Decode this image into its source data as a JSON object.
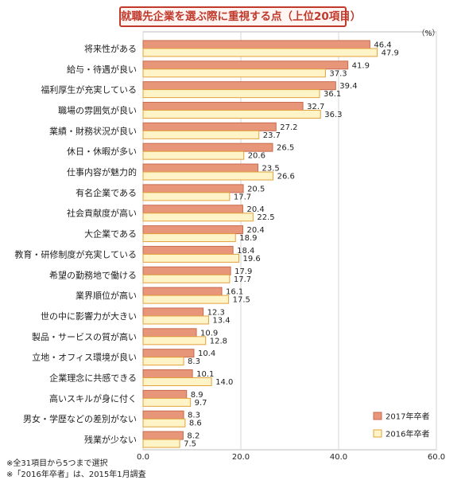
{
  "chart_data": {
    "type": "bar",
    "orientation": "horizontal",
    "title": "就職先企業を選ぶ際に重視する点（上位20項目）",
    "unit_label": "（%）",
    "categories": [
      "将来性がある",
      "給与・待遇が良い",
      "福利厚生が充実している",
      "職場の雰囲気が良い",
      "業績・財務状況が良い",
      "休日・休暇が多い",
      "仕事内容が魅力的",
      "有名企業である",
      "社会貢献度が高い",
      "大企業である",
      "教育・研修制度が充実している",
      "希望の勤務地で働ける",
      "業界順位が高い",
      "世の中に影響力が大きい",
      "製品・サービスの質が高い",
      "立地・オフィス環境が良い",
      "企業理念に共感できる",
      "高いスキルが身に付く",
      "男女・学歴などの差別がない",
      "残業が少ない"
    ],
    "series": [
      {
        "name": "2017年卒者",
        "color": "#e8967a",
        "border": "#c86a4e",
        "values": [
          46.4,
          41.9,
          39.4,
          32.7,
          27.2,
          26.5,
          23.5,
          20.5,
          20.4,
          20.4,
          18.4,
          17.9,
          16.1,
          12.3,
          10.9,
          10.4,
          10.1,
          8.9,
          8.3,
          8.2
        ]
      },
      {
        "name": "2016年卒者",
        "color": "#fff3c8",
        "border": "#e3a23c",
        "values": [
          47.9,
          37.3,
          36.1,
          36.3,
          23.7,
          20.6,
          26.6,
          17.7,
          22.5,
          18.9,
          19.6,
          17.7,
          17.5,
          13.4,
          12.8,
          8.3,
          14.0,
          9.7,
          8.6,
          7.5
        ]
      }
    ],
    "xlim": [
      0,
      60
    ],
    "xticks": [
      "0.0",
      "20.0",
      "40.0",
      "60.0"
    ],
    "grid": true,
    "legend_position": "bottom-right"
  },
  "notes": [
    "※全31項目から5つまで選択",
    "※「2016年卒者」は、2015年1月調査"
  ]
}
